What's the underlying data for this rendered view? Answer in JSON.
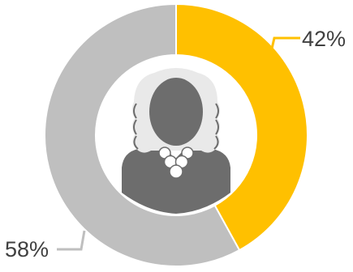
{
  "chart_data": {
    "type": "pie",
    "donut": true,
    "values": [
      42,
      58
    ],
    "labels": [
      "42%",
      "58%"
    ],
    "colors": [
      "#FFC000",
      "#BFBFBF"
    ],
    "title": "",
    "legend": "none",
    "center_icon": "judge-with-wig-icon"
  }
}
